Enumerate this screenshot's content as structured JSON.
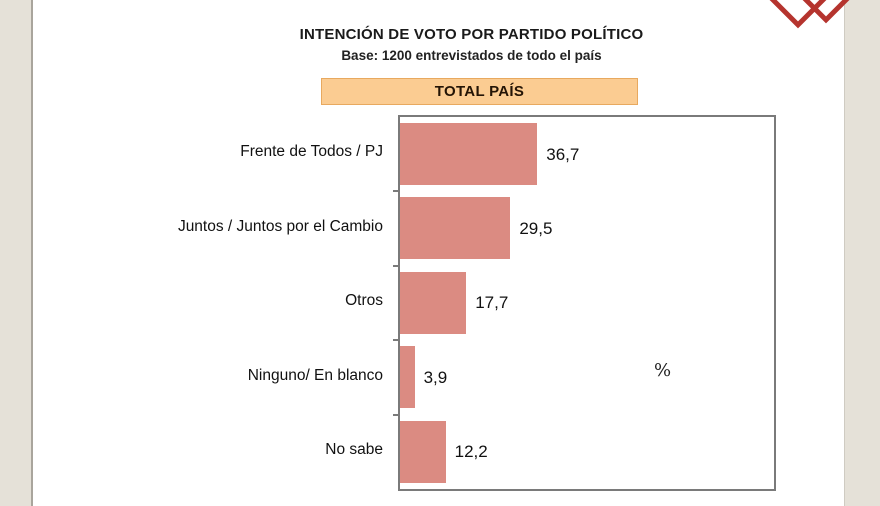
{
  "header": {
    "title": "INTENCIÓN DE VOTO POR PARTIDO POLÍTICO",
    "subtitle": "Base: 1200 entrevistados de todo el país",
    "banner_label": "TOTAL PAÍS"
  },
  "chart_data": {
    "type": "bar",
    "orientation": "horizontal",
    "title": "INTENCIÓN DE VOTO POR PARTIDO POLÍTICO",
    "subtitle": "Base: 1200 entrevistados de todo el país",
    "group_label": "TOTAL PAÍS",
    "categories": [
      "Frente de Todos / PJ",
      "Juntos / Juntos por el Cambio",
      "Otros",
      "Ninguno/ En blanco",
      "No sabe"
    ],
    "values": [
      36.7,
      29.5,
      17.7,
      3.9,
      12.2
    ],
    "value_labels": [
      "36,7",
      "29,5",
      "17,7",
      "3,9",
      "12,2"
    ],
    "unit_label": "%",
    "xlim": [
      0,
      100
    ],
    "grid": false,
    "legend": false,
    "axis_ticks": "category-boundaries-left"
  },
  "icons": {
    "logo": "overlapping-diamonds-logo"
  },
  "colors": {
    "page_bg": "#E5E1D8",
    "panel_bg": "#FFFFFF",
    "banner_bg": "#FBCC92",
    "banner_border": "#E8A95F",
    "banner_text": "#241405",
    "bar": "#DB8B82",
    "plot_border": "#7A7A7A",
    "text": "#1A1A1A",
    "logo_red": "#B5342E"
  }
}
